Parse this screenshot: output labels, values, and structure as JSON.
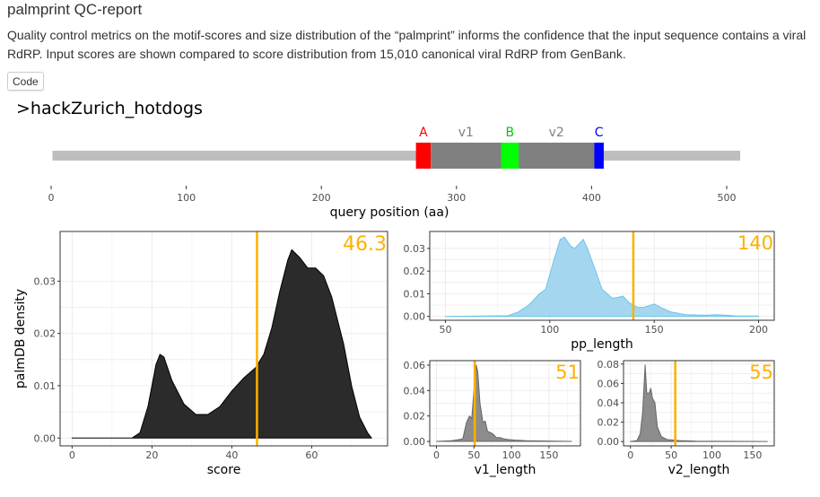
{
  "title": "palmprint QC-report",
  "description": "Quality control metrics on the motif-scores and size distribution of the “palmprint” informs the confidence that the input sequence contains a viral RdRP. Input scores are shown compared to score distribution from 15,010 canonical viral RdRP from GenBank.",
  "code_button": "Code",
  "sequence_name": ">hackZurich_hotdogs",
  "colors": {
    "accent": "#FFB000",
    "motif_A": "#FF0000",
    "motif_B": "#00FF00",
    "motif_C": "#0000FF",
    "pp_fill": "#9fd5ee"
  },
  "motif_map": {
    "query_length": 510,
    "segments": [
      {
        "label": "A",
        "start": 270,
        "end": 281,
        "color": "#FF0000",
        "label_color": "#FF0000"
      },
      {
        "label": "v1",
        "start": 281,
        "end": 333,
        "color": "#808080",
        "label_color": "#808080"
      },
      {
        "label": "B",
        "start": 333,
        "end": 346,
        "color": "#00FF00",
        "label_color": "#00CC00"
      },
      {
        "label": "v2",
        "start": 346,
        "end": 402,
        "color": "#808080",
        "label_color": "#808080"
      },
      {
        "label": "C",
        "start": 402,
        "end": 409,
        "color": "#0000FF",
        "label_color": "#0000FF"
      }
    ],
    "xticks": [
      "0",
      "100",
      "200",
      "300",
      "400",
      "500"
    ],
    "xlabel": "query position (aa)"
  },
  "chart_data": [
    {
      "type": "area",
      "name": "score",
      "xlabel": "score",
      "ylabel": "palmDB density",
      "xlim": [
        -3,
        79
      ],
      "ylim": [
        -0.0015,
        0.0395
      ],
      "xticks": [
        0,
        20,
        40,
        60
      ],
      "yticks": [
        0,
        0.01,
        0.02,
        0.03
      ],
      "ytick_labels": [
        "0.00",
        "0.01",
        "0.02",
        "0.03"
      ],
      "input_value": 46.3,
      "input_label": "46.3",
      "fill": "#2b2b2b",
      "stroke": "#000",
      "x": [
        0,
        15,
        17,
        19,
        21,
        22,
        23,
        25,
        28,
        31,
        34,
        37,
        40,
        43,
        46,
        48,
        50,
        52,
        54,
        55,
        57,
        59,
        61,
        63,
        65,
        68,
        70,
        72,
        74,
        75
      ],
      "y": [
        0,
        0,
        0.001,
        0.006,
        0.014,
        0.016,
        0.0155,
        0.011,
        0.0065,
        0.0045,
        0.0045,
        0.006,
        0.009,
        0.0115,
        0.0135,
        0.016,
        0.021,
        0.028,
        0.034,
        0.036,
        0.0345,
        0.0325,
        0.0325,
        0.031,
        0.027,
        0.018,
        0.01,
        0.004,
        0.001,
        0
      ]
    },
    {
      "type": "area",
      "name": "pp_length",
      "xlabel": "pp_length",
      "ylabel": "",
      "xlim": [
        42.5,
        207.5
      ],
      "ylim": [
        -0.0017,
        0.0375
      ],
      "xticks": [
        50,
        100,
        150,
        200
      ],
      "yticks": [
        0,
        0.01,
        0.02,
        0.03
      ],
      "ytick_labels": [
        "0.00",
        "0.01",
        "0.02",
        "0.03"
      ],
      "input_value": 140,
      "input_label": "140",
      "fill": "#9fd5ee",
      "stroke": "#6cc4e8",
      "x": [
        50,
        80,
        85,
        90,
        95,
        98,
        102,
        105,
        107,
        110,
        112,
        114,
        116,
        118,
        122,
        125,
        130,
        133,
        135,
        138,
        142,
        145,
        150,
        153,
        158,
        165,
        175,
        180,
        190,
        200
      ],
      "y": [
        0,
        0.0003,
        0.002,
        0.005,
        0.01,
        0.012,
        0.025,
        0.034,
        0.035,
        0.031,
        0.03,
        0.032,
        0.034,
        0.03,
        0.02,
        0.012,
        0.008,
        0.0085,
        0.009,
        0.006,
        0.004,
        0.004,
        0.0055,
        0.004,
        0.002,
        0.0008,
        0.0005,
        0.0008,
        0.0002,
        0.0002
      ]
    },
    {
      "type": "area",
      "name": "v1_length",
      "xlabel": "v1_length",
      "ylabel": "",
      "xlim": [
        -9,
        192
      ],
      "ylim": [
        -0.0035,
        0.0635
      ],
      "xticks": [
        0,
        50,
        100,
        150
      ],
      "yticks": [
        0,
        0.02,
        0.04,
        0.06
      ],
      "ytick_labels": [
        "0.00",
        "0.02",
        "0.04",
        "0.06"
      ],
      "input_value": 51,
      "input_label": "51",
      "fill": "#8c8c8c",
      "stroke": "#666",
      "x": [
        0,
        20,
        35,
        40,
        44,
        47,
        50,
        53,
        55,
        58,
        62,
        65,
        68,
        75,
        80,
        85,
        90,
        95,
        105,
        120,
        180
      ],
      "y": [
        0,
        0.0005,
        0.002,
        0.015,
        0.02,
        0.018,
        0.04,
        0.06,
        0.055,
        0.03,
        0.015,
        0.016,
        0.008,
        0.006,
        0.003,
        0.003,
        0.002,
        0.0015,
        0.001,
        0.0005,
        0
      ]
    },
    {
      "type": "area",
      "name": "v2_length",
      "xlabel": "v2_length",
      "ylabel": "",
      "xlim": [
        -8.5,
        176.5
      ],
      "ylim": [
        -0.0045,
        0.0835
      ],
      "xticks": [
        0,
        50,
        100,
        150
      ],
      "yticks": [
        0,
        0.02,
        0.04,
        0.06,
        0.08
      ],
      "ytick_labels": [
        "0.00",
        "0.02",
        "0.04",
        "0.06",
        "0.08"
      ],
      "input_value": 55,
      "input_label": "55",
      "fill": "#8c8c8c",
      "stroke": "#666",
      "x": [
        0,
        8,
        12,
        15,
        18,
        20,
        23,
        25,
        27,
        30,
        33,
        38,
        45,
        60,
        80,
        168
      ],
      "y": [
        0,
        0.001,
        0.008,
        0.03,
        0.079,
        0.05,
        0.05,
        0.055,
        0.045,
        0.04,
        0.015,
        0.005,
        0.002,
        0.001,
        0.0003,
        0
      ]
    }
  ]
}
